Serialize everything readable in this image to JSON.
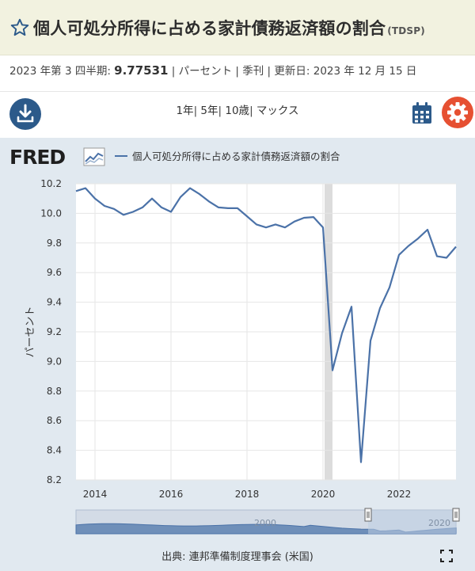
{
  "title": {
    "main": "個人可処分所得に占める家計債務返済額の割合",
    "code": "(TDSP)",
    "icon": "star-outline-icon"
  },
  "meta": {
    "period_label": "2023 年第 3 四半期:",
    "value": "9.77531",
    "rest": "| パーセント | 季刊 | 更新日: 2023 年 12 月 15 日"
  },
  "toolbar": {
    "range_1y": "1年",
    "range_5y": "5年",
    "range_10y": "10歳",
    "range_max": "マックス",
    "sep": "|",
    "download_icon": "download-icon",
    "calendar_icon": "calendar-icon",
    "settings_icon": "gear-icon",
    "colors": {
      "download": "#2c5a8a",
      "settings": "#e65032",
      "calendar": "#2c5a8a"
    }
  },
  "chart_panel": {
    "logo": "FRED",
    "source": "出典: 連邦準備制度理事会 (米国)",
    "expand_icon": "expand-icon"
  },
  "chart_data": {
    "type": "line",
    "series": [
      {
        "name": "個人可処分所得に占める家計債務返済額の割合",
        "color": "#4b72a8",
        "x": [
          2013.5,
          2013.75,
          2014.0,
          2014.25,
          2014.5,
          2014.75,
          2015.0,
          2015.25,
          2015.5,
          2015.75,
          2016.0,
          2016.25,
          2016.5,
          2016.75,
          2017.0,
          2017.25,
          2017.5,
          2017.75,
          2018.0,
          2018.25,
          2018.5,
          2018.75,
          2019.0,
          2019.25,
          2019.5,
          2019.75,
          2020.0,
          2020.25,
          2020.5,
          2020.75,
          2021.0,
          2021.25,
          2021.5,
          2021.75,
          2022.0,
          2022.25,
          2022.5,
          2022.75,
          2023.0,
          2023.25,
          2023.5
        ],
        "values": [
          10.15,
          10.17,
          10.1,
          10.05,
          10.03,
          9.99,
          10.01,
          10.04,
          10.1,
          10.04,
          10.01,
          10.11,
          10.17,
          10.13,
          10.08,
          10.04,
          10.035,
          10.035,
          9.98,
          9.925,
          9.905,
          9.925,
          9.905,
          9.945,
          9.97,
          9.975,
          9.905,
          8.94,
          9.19,
          9.37,
          8.32,
          9.14,
          9.36,
          9.5,
          9.72,
          9.78,
          9.83,
          9.89,
          9.71,
          9.7,
          9.775
        ]
      }
    ],
    "xlim": [
      2013.5,
      2023.5
    ],
    "ylim": [
      8.2,
      10.2
    ],
    "yticks": [
      8.2,
      8.4,
      8.6,
      8.8,
      9.0,
      9.2,
      9.4,
      9.6,
      9.8,
      10.0,
      10.2
    ],
    "xticks": [
      2014,
      2016,
      2018,
      2020,
      2022
    ],
    "ylabel": "パーセント",
    "xlabel": "",
    "recession": [
      2020.0,
      2020.25
    ],
    "grid": true,
    "navigator": {
      "ticks": [
        2000,
        2020
      ]
    }
  }
}
